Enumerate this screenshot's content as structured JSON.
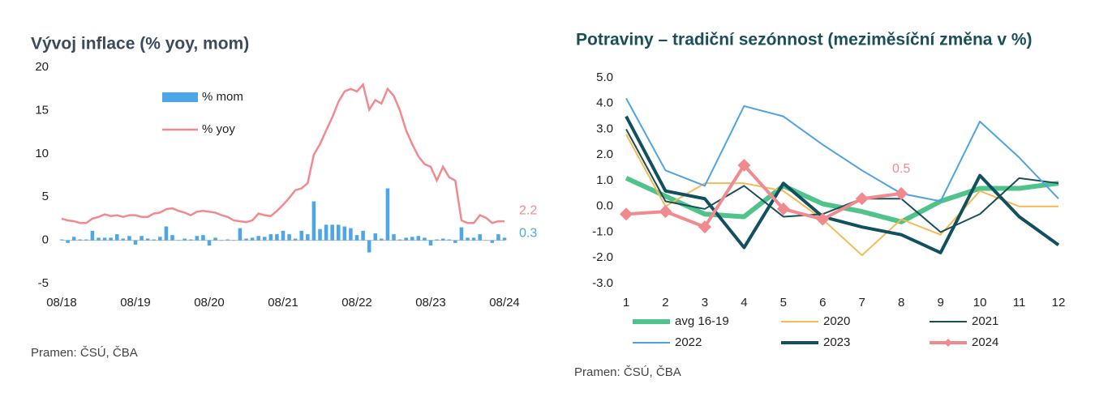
{
  "chart_data": [
    {
      "type": "combo",
      "title": "Vývoj inflace (% yoy, mom)",
      "source": "Pramen: ČSÚ, ČBA",
      "categories": [
        "08/18",
        null,
        null,
        null,
        null,
        null,
        null,
        null,
        null,
        null,
        null,
        null,
        "08/19",
        null,
        null,
        null,
        null,
        null,
        null,
        null,
        null,
        null,
        null,
        null,
        "08/20",
        null,
        null,
        null,
        null,
        null,
        null,
        null,
        null,
        null,
        null,
        null,
        "08/21",
        null,
        null,
        null,
        null,
        null,
        null,
        null,
        null,
        null,
        null,
        null,
        "08/22",
        null,
        null,
        null,
        null,
        null,
        null,
        null,
        null,
        null,
        null,
        null,
        "08/23",
        null,
        null,
        null,
        null,
        null,
        null,
        null,
        null,
        null,
        null,
        null,
        "08/24"
      ],
      "series": [
        {
          "name": "% mom",
          "type": "bar",
          "color": "#4da6e8",
          "values": [
            0.1,
            -0.3,
            0.4,
            0.1,
            0.1,
            1.1,
            0.3,
            0.3,
            0.3,
            0.7,
            0.2,
            0.5,
            -0.5,
            0.5,
            0.2,
            0.1,
            0.4,
            1.6,
            0.6,
            0.0,
            0.2,
            0.1,
            0.5,
            0.6,
            -0.6,
            0.3,
            0.0,
            0.1,
            0.0,
            1.4,
            0.2,
            0.3,
            0.5,
            0.4,
            0.7,
            0.7,
            1.1,
            0.7,
            0.2,
            1.1,
            0.7,
            4.5,
            1.3,
            1.8,
            1.8,
            1.8,
            1.6,
            1.4,
            0.6,
            1.1,
            -1.4,
            0.8,
            0.2,
            6.0,
            0.7,
            0.1,
            0.3,
            0.4,
            0.5,
            0.3,
            -0.6,
            0.1,
            0.2,
            0.1,
            -0.3,
            1.5,
            0.3,
            0.3,
            0.7,
            0.0,
            -0.3,
            0.7,
            0.3
          ]
        },
        {
          "name": "% yoy",
          "type": "line",
          "color": "#f08a8e",
          "values": [
            2.5,
            2.3,
            2.2,
            2.0,
            2.0,
            2.5,
            2.7,
            3.0,
            2.8,
            2.9,
            2.7,
            2.9,
            2.9,
            2.7,
            2.7,
            3.1,
            3.2,
            3.6,
            3.7,
            3.4,
            3.2,
            2.9,
            3.3,
            3.4,
            3.3,
            3.2,
            2.9,
            2.7,
            2.3,
            2.2,
            2.1,
            2.3,
            3.1,
            2.9,
            2.8,
            3.4,
            4.1,
            4.9,
            5.8,
            6.0,
            6.6,
            9.9,
            11.1,
            12.7,
            14.2,
            16.0,
            17.2,
            17.5,
            17.2,
            18.0,
            15.1,
            16.2,
            15.8,
            17.5,
            16.7,
            15.0,
            12.7,
            11.1,
            9.7,
            8.8,
            8.5,
            6.9,
            8.5,
            7.3,
            6.9,
            2.3,
            2.0,
            2.0,
            2.9,
            2.6,
            2.0,
            2.2,
            2.2
          ]
        }
      ],
      "annotations": [
        {
          "text": "2.2",
          "color": "#f08a8e"
        },
        {
          "text": "0.3",
          "color": "#4da6e8"
        }
      ],
      "ylim": [
        -5,
        20
      ],
      "yticks": [
        -5,
        0,
        5,
        10,
        15,
        20
      ],
      "grid": false
    },
    {
      "type": "line",
      "title": "Potraviny – tradiční sezónnost (meziměsíční změna v %)",
      "source": "Pramen: ČSÚ, ČBA",
      "x": [
        1,
        2,
        3,
        4,
        5,
        6,
        7,
        8,
        9,
        10,
        11,
        12
      ],
      "series": [
        {
          "name": "avg 16-19",
          "color": "#4fc38a",
          "values": [
            1.1,
            0.4,
            -0.3,
            -0.4,
            0.8,
            0.1,
            -0.2,
            -0.6,
            0.2,
            0.7,
            0.7,
            0.9
          ]
        },
        {
          "name": "2020",
          "color": "#f7b955",
          "values": [
            2.8,
            0.0,
            0.9,
            0.9,
            0.6,
            -0.5,
            -1.9,
            -0.5,
            -1.1,
            0.6,
            0.0,
            0.0
          ]
        },
        {
          "name": "2021",
          "color": "#1a4f5a",
          "values": [
            3.0,
            0.2,
            -0.1,
            0.8,
            -0.4,
            -0.3,
            0.3,
            0.3,
            -1.0,
            -0.3,
            1.1,
            0.9
          ]
        },
        {
          "name": "2022",
          "color": "#4ea3e0",
          "values": [
            4.2,
            1.4,
            0.8,
            3.9,
            3.5,
            2.4,
            1.4,
            0.5,
            0.2,
            3.3,
            1.9,
            0.3
          ]
        },
        {
          "name": "2023",
          "color": "#12505f",
          "values": [
            3.5,
            0.6,
            0.3,
            -1.6,
            0.9,
            -0.4,
            -0.8,
            -1.1,
            -1.8,
            1.2,
            -0.4,
            -1.5
          ]
        },
        {
          "name": "2024",
          "color": "#f08a8e",
          "values": [
            -0.3,
            -0.2,
            -0.8,
            1.6,
            -0.1,
            -0.5,
            0.3,
            0.5,
            null,
            null,
            null,
            null
          ]
        }
      ],
      "annotations": [
        {
          "text": "0.5",
          "color": "#f08a8e"
        }
      ],
      "xlim": [
        1,
        12
      ],
      "xticks": [
        1,
        2,
        3,
        4,
        5,
        6,
        7,
        8,
        9,
        10,
        11,
        12
      ],
      "ylim": [
        -3,
        5
      ],
      "yticks": [
        {
          "value": -3,
          "label": "-3.0"
        },
        {
          "value": -2,
          "label": "-2.0"
        },
        {
          "value": -1,
          "label": "-1.0"
        },
        {
          "value": 0,
          "label": "0.0"
        },
        {
          "value": 1,
          "label": "1.0"
        },
        {
          "value": 2,
          "label": "2.0"
        },
        {
          "value": 3,
          "label": "3.0"
        },
        {
          "value": 4,
          "label": "4.0"
        },
        {
          "value": 5,
          "label": "5.0"
        }
      ],
      "grid": false
    }
  ]
}
